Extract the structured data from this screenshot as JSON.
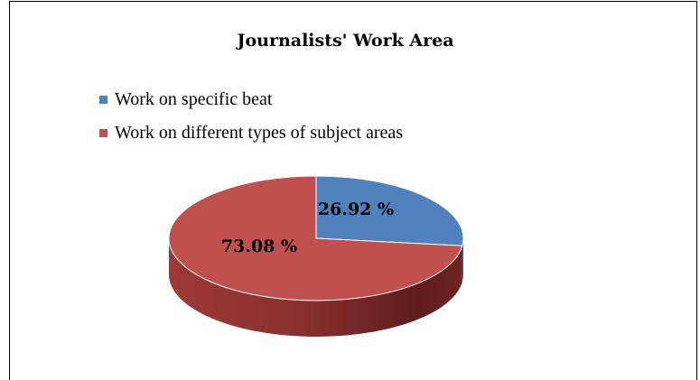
{
  "chart_data": {
    "type": "pie",
    "title": "Journalists' Work Area",
    "categories": [
      "Work on specific beat",
      "Work on different types of subject areas"
    ],
    "values": [
      26.92,
      73.08
    ],
    "data_labels": [
      "26.92 %",
      "73.08 %"
    ],
    "colors": [
      "#4f81bd",
      "#c0504d"
    ],
    "legend_position": "top-left",
    "style": "3d"
  }
}
